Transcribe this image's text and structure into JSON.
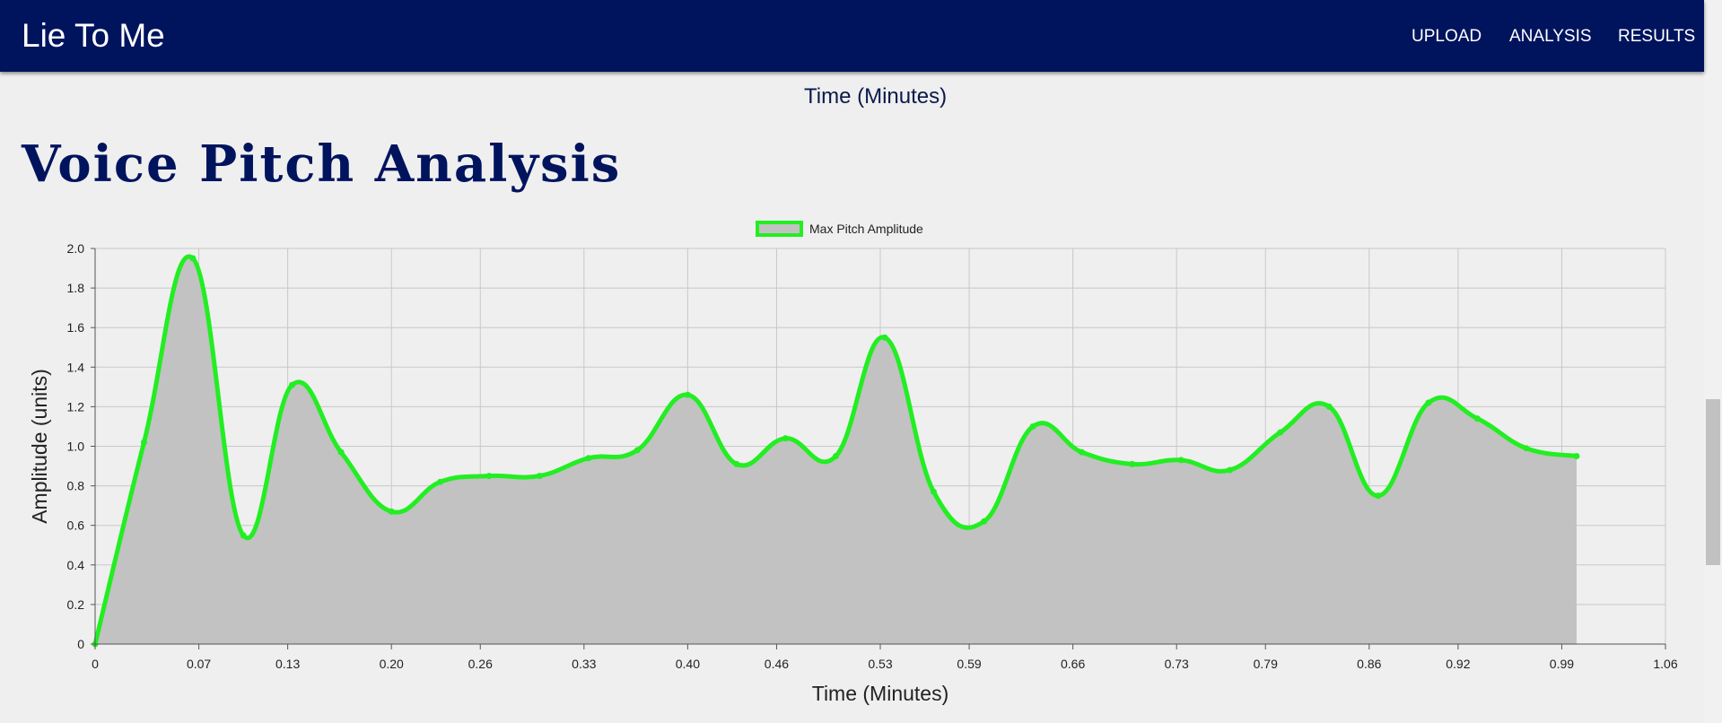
{
  "app": {
    "brand": "Lie To Me",
    "nav": [
      "UPLOAD",
      "ANALYSIS",
      "RESULTS"
    ],
    "brand_color": "#00145e"
  },
  "page": {
    "top_axis_label": "Time (Minutes)",
    "section_title": "Voice Pitch Analysis"
  },
  "chart_data": {
    "type": "area",
    "legend": [
      "Max Pitch Amplitude"
    ],
    "legend_position": "top-center",
    "xlabel": "Time (Minutes)",
    "ylabel": "Amplitude (units)",
    "xlim": [
      0,
      1.06
    ],
    "ylim": [
      0,
      2.0
    ],
    "grid": true,
    "xticks": [
      "0",
      "0.07",
      "0.13",
      "0.20",
      "0.26",
      "0.33",
      "0.40",
      "0.46",
      "0.53",
      "0.59",
      "0.66",
      "0.73",
      "0.79",
      "0.86",
      "0.92",
      "0.99",
      "1.06"
    ],
    "yticks": [
      "0",
      "0.2",
      "0.4",
      "0.6",
      "0.8",
      "1.0",
      "1.2",
      "1.4",
      "1.6",
      "1.8",
      "2.0"
    ],
    "series": [
      {
        "name": "Max Pitch Amplitude",
        "line_color": "#22ee22",
        "fill_color": "#c2c2c2",
        "x": [
          0,
          0.033,
          0.066,
          0.1,
          0.133,
          0.166,
          0.2,
          0.233,
          0.266,
          0.3,
          0.333,
          0.366,
          0.4,
          0.433,
          0.466,
          0.5,
          0.533,
          0.566,
          0.6,
          0.633,
          0.666,
          0.7,
          0.733,
          0.766,
          0.8,
          0.833,
          0.866,
          0.9,
          0.933,
          0.966,
          1.0
        ],
        "values": [
          0,
          1.02,
          1.95,
          0.55,
          1.31,
          0.97,
          0.67,
          0.82,
          0.85,
          0.85,
          0.94,
          0.98,
          1.26,
          0.91,
          1.04,
          0.95,
          1.55,
          0.77,
          0.62,
          1.1,
          0.97,
          0.91,
          0.93,
          0.88,
          1.07,
          1.2,
          0.75,
          1.22,
          1.14,
          0.99,
          0.95
        ]
      }
    ]
  }
}
